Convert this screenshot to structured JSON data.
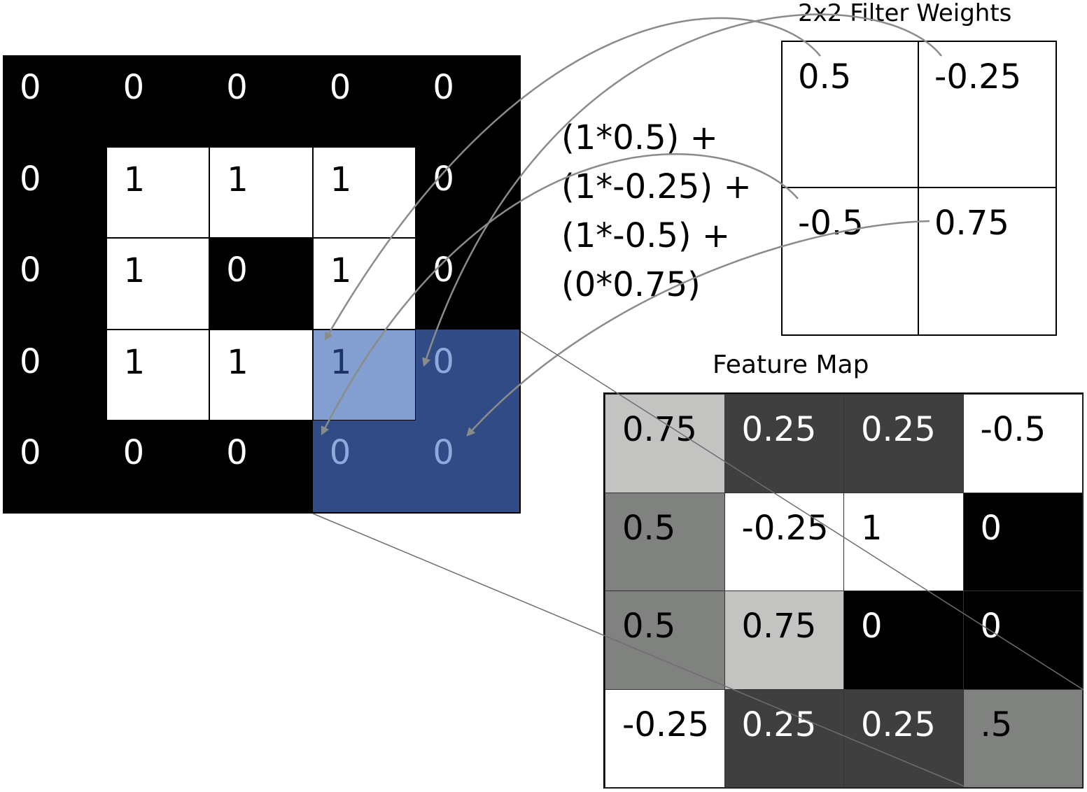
{
  "input_grid": [
    [
      "0",
      "0",
      "0",
      "0",
      "0"
    ],
    [
      "0",
      "1",
      "1",
      "1",
      "0"
    ],
    [
      "0",
      "1",
      "0",
      "1",
      "0"
    ],
    [
      "0",
      "1",
      "1",
      "1",
      "0"
    ],
    [
      "0",
      "0",
      "0",
      "0",
      "0"
    ]
  ],
  "highlight": {
    "rows": [
      3,
      4
    ],
    "cols": [
      3,
      4
    ],
    "color": "#304b85",
    "light_color": "#839fd2"
  },
  "filter": {
    "title": "2x2 Filter Weights",
    "weights": [
      [
        "0.5",
        "-0.25"
      ],
      [
        "-0.5",
        "0.75"
      ]
    ]
  },
  "equation": [
    "(1*0.5) +",
    "(1*-0.25) +",
    "(1*-0.5) +",
    "(0*0.75)"
  ],
  "feature_map": {
    "title": "Feature Map",
    "values": [
      [
        "0.75",
        "0.25",
        "0.25",
        "-0.5"
      ],
      [
        "0.5",
        "-0.25",
        "1",
        "0"
      ],
      [
        "0.5",
        "0.75",
        "0",
        "0"
      ],
      [
        "-0.25",
        "0.25",
        "0.25",
        ".5"
      ]
    ],
    "shades": [
      [
        "#c3c3c1",
        "#3f3f3f",
        "#3f3f3f",
        "#ffffff"
      ],
      [
        "#80827f",
        "#ffffff",
        "#ffffff",
        "#000000"
      ],
      [
        "#80827f",
        "#c3c3c1",
        "#000000",
        "#000000"
      ],
      [
        "#ffffff",
        "#3f3f3f",
        "#3f3f3f",
        "#80827f"
      ]
    ]
  },
  "colors": {
    "arrow": "#8a8c88",
    "connector": "#6e6e6e"
  }
}
